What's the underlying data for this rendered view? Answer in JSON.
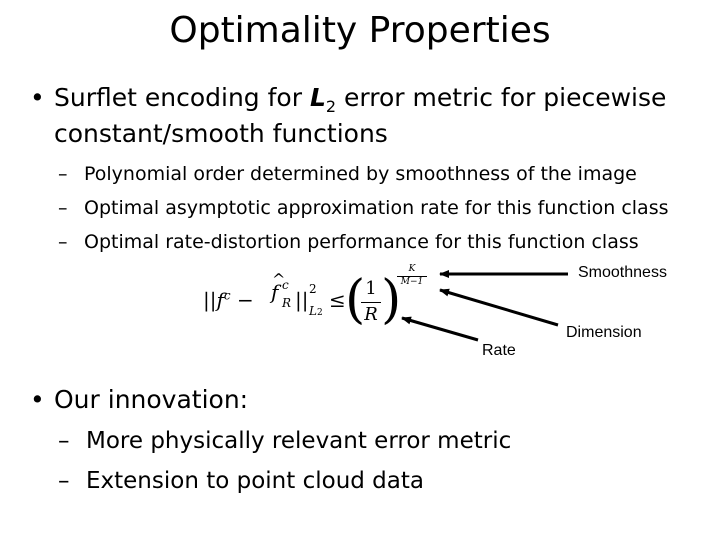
{
  "title": "Optimality Properties",
  "bullet1": {
    "line1_pre": "Surflet encoding for ",
    "line1_math": "L",
    "line1_sub": "2",
    "line1_post": " error metric for piecewise",
    "line2": "constant/smooth functions",
    "subs": [
      "Polynomial order determined by smoothness of the image",
      "Optimal asymptotic approximation rate for this function class",
      "Optimal rate-distortion performance for this function class"
    ]
  },
  "formula": {
    "lhs": "||f",
    "lhs_sup": "c",
    "minus": " − ",
    "approx": "f",
    "approx_sup": "c",
    "approx_sub": "R",
    "norm": "||",
    "norm_sup": "2",
    "norm_sub": "L",
    "norm_sub2": "2",
    "leq": "≤",
    "numerator": "1",
    "denominator": "R",
    "exp_num": "K",
    "exp_den": "M−1"
  },
  "labels": {
    "smoothness": "Smoothness",
    "dimension": "Dimension",
    "rate": "Rate"
  },
  "bullet2": {
    "text": "Our innovation:",
    "subs": [
      "More physically relevant error metric",
      "Extension to point cloud data"
    ]
  },
  "dash": "–",
  "dot": "•"
}
